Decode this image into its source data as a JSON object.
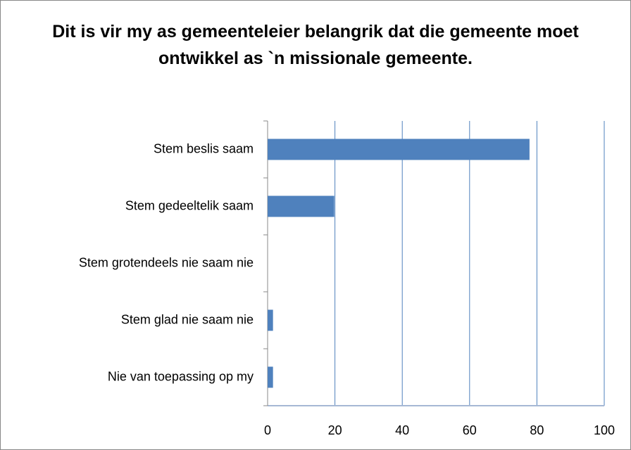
{
  "chart_data": {
    "type": "hbar",
    "title": "Dit is vir my as gemeenteleier belangrik dat die gemeente moet ontwikkel as `n missionale gemeente.",
    "categories": [
      "Stem beslis saam",
      "Stem gedeeltelik saam",
      "Stem grotendeels nie saam nie",
      "Stem glad nie saam nie",
      "Nie van toepassing op my"
    ],
    "values": [
      77.8,
      19.8,
      0,
      1.6,
      1.6
    ],
    "color": "#4f81bd",
    "xlim": [
      0,
      100
    ],
    "xticks": [
      0,
      20,
      40,
      60,
      80,
      100
    ],
    "grid": true
  }
}
